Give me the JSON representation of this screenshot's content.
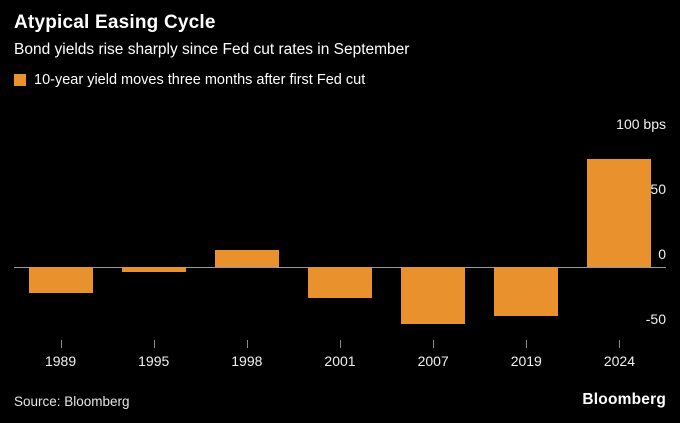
{
  "header": {
    "title": "Atypical Easing Cycle",
    "subtitle": "Bond yields rise sharply since Fed cut rates in September"
  },
  "legend": {
    "label": "10-year yield moves three months after first Fed cut",
    "color": "#E8912D"
  },
  "chart_data": {
    "type": "bar",
    "title": "Atypical Easing Cycle",
    "subtitle": "Bond yields rise sharply since Fed cut rates in September",
    "series_name": "10-year yield moves three months after first Fed cut",
    "categories": [
      "1989",
      "1995",
      "1998",
      "2001",
      "2007",
      "2019",
      "2024"
    ],
    "values": [
      -20,
      -4,
      13,
      -24,
      -44,
      -38,
      83
    ],
    "unit": "bps",
    "ylim": [
      -55,
      100
    ],
    "y_ticks": [
      {
        "value": 100,
        "label": "100 bps"
      },
      {
        "value": 50,
        "label": "50"
      },
      {
        "value": 0,
        "label": "0"
      },
      {
        "value": -50,
        "label": "-50"
      }
    ],
    "bar_color": "#E8912D",
    "grid": false,
    "legend_position": "top-left",
    "y_axis_side": "right"
  },
  "footer": {
    "source": "Source: Bloomberg",
    "logo": "Bloomberg"
  }
}
